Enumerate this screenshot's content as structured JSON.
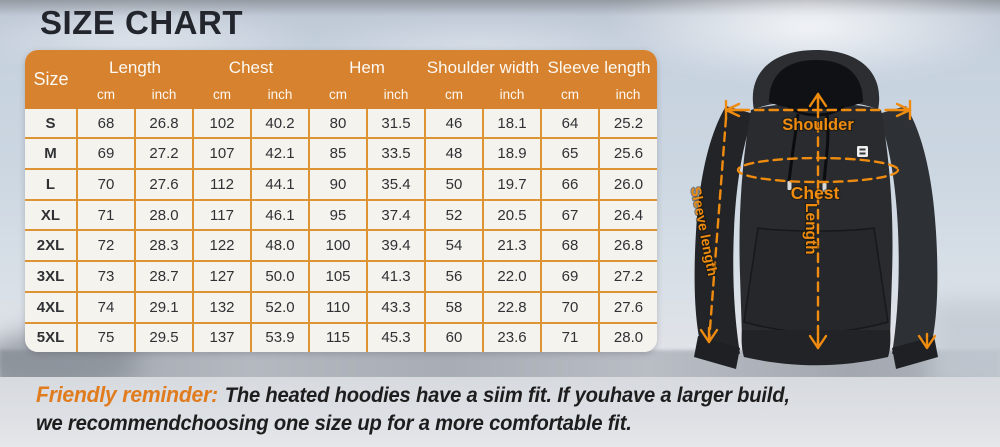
{
  "title": "SIZE CHART",
  "table": {
    "corner_header": "Size",
    "groups": [
      {
        "label": "Length",
        "units": [
          "cm",
          "inch"
        ]
      },
      {
        "label": "Chest",
        "units": [
          "cm",
          "inch"
        ]
      },
      {
        "label": "Hem",
        "units": [
          "cm",
          "inch"
        ]
      },
      {
        "label": "Shoulder width",
        "units": [
          "cm",
          "inch"
        ]
      },
      {
        "label": "Sleeve length",
        "units": [
          "cm",
          "inch"
        ]
      }
    ],
    "rows": [
      {
        "size": "S",
        "values": [
          "68",
          "26.8",
          "102",
          "40.2",
          "80",
          "31.5",
          "46",
          "18.1",
          "64",
          "25.2"
        ]
      },
      {
        "size": "M",
        "values": [
          "69",
          "27.2",
          "107",
          "42.1",
          "85",
          "33.5",
          "48",
          "18.9",
          "65",
          "25.6"
        ]
      },
      {
        "size": "L",
        "values": [
          "70",
          "27.6",
          "112",
          "44.1",
          "90",
          "35.4",
          "50",
          "19.7",
          "66",
          "26.0"
        ]
      },
      {
        "size": "XL",
        "values": [
          "71",
          "28.0",
          "117",
          "46.1",
          "95",
          "37.4",
          "52",
          "20.5",
          "67",
          "26.4"
        ]
      },
      {
        "size": "2XL",
        "values": [
          "72",
          "28.3",
          "122",
          "48.0",
          "100",
          "39.4",
          "54",
          "21.3",
          "68",
          "26.8"
        ]
      },
      {
        "size": "3XL",
        "values": [
          "73",
          "28.7",
          "127",
          "50.0",
          "105",
          "41.3",
          "56",
          "22.0",
          "69",
          "27.2"
        ]
      },
      {
        "size": "4XL",
        "values": [
          "74",
          "29.1",
          "132",
          "52.0",
          "110",
          "43.3",
          "58",
          "22.8",
          "70",
          "27.6"
        ]
      },
      {
        "size": "5XL",
        "values": [
          "75",
          "29.5",
          "137",
          "53.9",
          "115",
          "45.3",
          "60",
          "23.6",
          "71",
          "28.0"
        ]
      }
    ]
  },
  "diagram": {
    "labels": {
      "shoulder": "Shoulder",
      "chest": "Chest",
      "length": "Length",
      "sleeve": "Sleeve length"
    }
  },
  "reminder": {
    "highlight": "Friendly reminder:",
    "text_line1": "The heated hoodies have a siim fit. If youhave a larger build,",
    "text_line2": "we recommendchoosing one size up for a more comfortable fit."
  },
  "colors": {
    "header_bg": "#D6822E",
    "table_border": "#DD9434",
    "table_bg": "#F5F3EE",
    "annotation": "#EF8B0F",
    "reminder_highlight": "#E07C1E"
  }
}
